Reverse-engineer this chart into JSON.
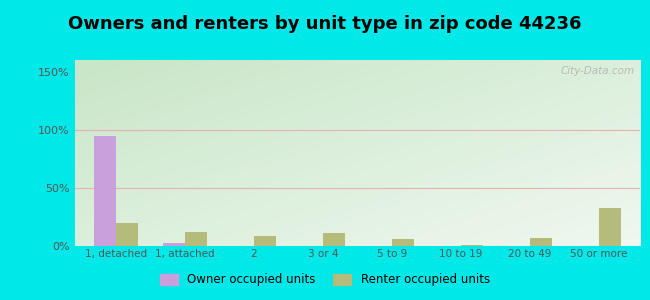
{
  "title": "Owners and renters by unit type in zip code 44236",
  "categories": [
    "1, detached",
    "1, attached",
    "2",
    "3 or 4",
    "5 to 9",
    "10 to 19",
    "20 to 49",
    "50 or more"
  ],
  "owner_values": [
    95,
    3,
    0,
    0,
    0,
    0,
    0,
    0
  ],
  "renter_values": [
    20,
    12,
    9,
    11,
    6,
    0.5,
    7,
    33
  ],
  "owner_color": "#c9a0dc",
  "renter_color": "#b5bb7a",
  "yticks": [
    0,
    50,
    100,
    150
  ],
  "ytick_labels": [
    "0%",
    "50%",
    "100%",
    "150%"
  ],
  "ylim": [
    0,
    160
  ],
  "outer_bg": "#00e8e8",
  "title_fontsize": 13,
  "legend_labels": [
    "Owner occupied units",
    "Renter occupied units"
  ],
  "watermark": "City-Data.com",
  "grid_color": "#e8b0b0",
  "bg_color_topleft": "#c8e8c8",
  "bg_color_bottomright": "#e8f5f0"
}
